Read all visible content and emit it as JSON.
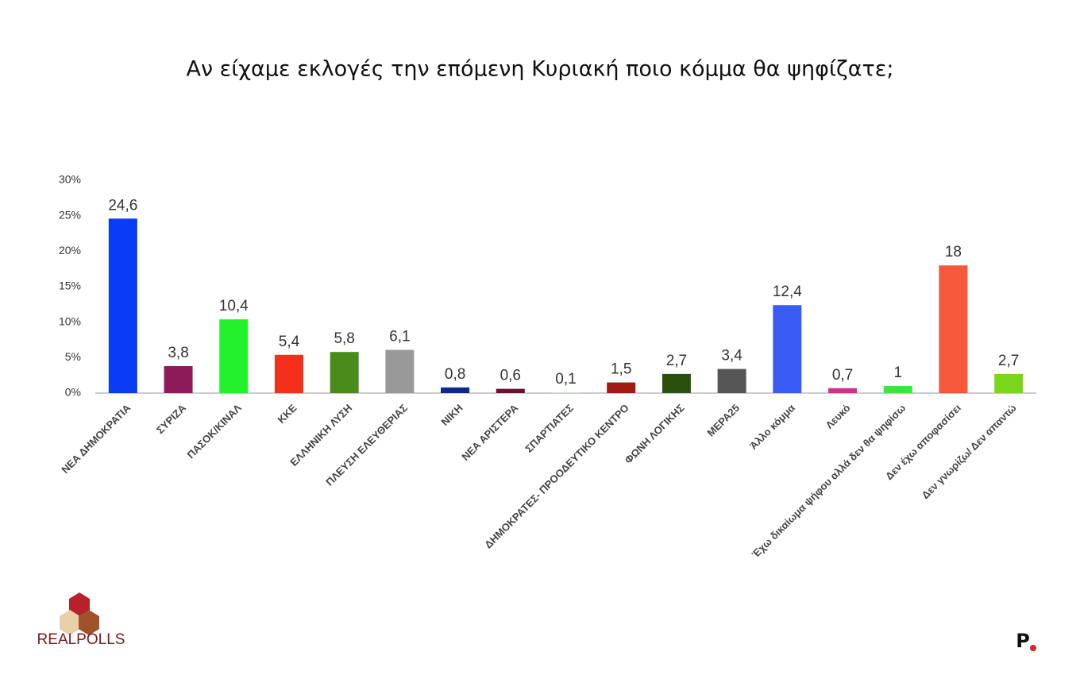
{
  "chart_data": {
    "type": "bar",
    "title": "Αν είχαμε εκλογές την επόμενη Κυριακή ποιο κόμμα θα ψηφίζατε;",
    "categories": [
      "ΝΕΑ ΔΗΜΟΚΡΑΤΙΑ",
      "ΣΥΡΙΖΑ",
      "ΠΑΣΟΚ/ΚΙΝΑΛ",
      "ΚΚΕ",
      "ΕΛΛΗΝΙΚΗ ΛΥΣΗ",
      "ΠΛΕΥΣΗ ΕΛΕΥΘΕΡΙΑΣ",
      "ΝΙΚΗ",
      "ΝΕΑ ΑΡΙΣΤΕΡΑ",
      "ΣΠΑΡΤΙΑΤΕΣ",
      "ΔΗΜΟΚΡΑΤΕΣ-  ΠΡΟΟΔΕΥΤΙΚΟ ΚΕΝΤΡΟ",
      "ΦΩΝΗ ΛΟΓΙΚΗΣ",
      "ΜΕΡΑ25",
      "Άλλο κόμμα",
      "Λευκό",
      "Έχω δικαίωμα ψήφου αλλά δεν θα ψηφίσω",
      "Δεν έχω αποφασίσει",
      "Δεν γνωρίζω/ Δεν απαντώ"
    ],
    "values": [
      24.6,
      3.8,
      10.4,
      5.4,
      5.8,
      6.1,
      0.8,
      0.6,
      0.1,
      1.5,
      2.7,
      3.4,
      12.4,
      0.7,
      1,
      18,
      2.7
    ],
    "value_labels": [
      "24,6",
      "3,8",
      "10,4",
      "5,4",
      "5,8",
      "6,1",
      "0,8",
      "0,6",
      "0,1",
      "1,5",
      "2,7",
      "3,4",
      "12,4",
      "0,7",
      "1",
      "18",
      "2,7"
    ],
    "colors": [
      "#0a3cf5",
      "#8e1a5a",
      "#22f22c",
      "#f5301a",
      "#4a8c1c",
      "#999999",
      "#0b2a8c",
      "#6b1030",
      "#c8e6c0",
      "#a01a10",
      "#2a5010",
      "#555555",
      "#3a5cf5",
      "#d0308a",
      "#3ae63a",
      "#f5583a",
      "#7ad61a"
    ],
    "ylim": [
      0,
      30
    ],
    "yticks": [
      {
        "value": 0,
        "label": "0%"
      },
      {
        "value": 5,
        "label": "5%"
      },
      {
        "value": 10,
        "label": "10%"
      },
      {
        "value": 15,
        "label": "15%"
      },
      {
        "value": 20,
        "label": "20%"
      },
      {
        "value": 25,
        "label": "25%"
      },
      {
        "value": 30,
        "label": "30%"
      }
    ],
    "grid": false
  },
  "brand": "REALPOLLS",
  "publisher": "P"
}
